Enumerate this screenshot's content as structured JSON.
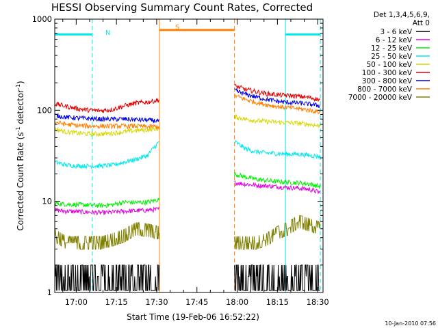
{
  "chart_data": {
    "type": "line",
    "title": "HESSI Observing Summary Count Rates, Corrected",
    "xlabel": "Start Time (19-Feb-06 16:52:22)",
    "ylabel_main": "Corrected Count Rate (s",
    "ylabel_sup1": "-1",
    "ylabel_mid": " detector",
    "ylabel_sup2": "-1",
    "ylabel_end": ")",
    "y_scale": "log",
    "ylim": [
      1,
      1000
    ],
    "xlim_minutes_after_1652": [
      0,
      100
    ],
    "x_ticks": [
      {
        "label": "17:00",
        "minute": 8
      },
      {
        "label": "17:15",
        "minute": 23
      },
      {
        "label": "17:30",
        "minute": 38
      },
      {
        "label": "17:45",
        "minute": 53
      },
      {
        "label": "18:00",
        "minute": 68
      },
      {
        "label": "18:15",
        "minute": 83
      },
      {
        "label": "18:30",
        "minute": 98
      }
    ],
    "y_ticks": [
      {
        "label": "1",
        "value": 1
      },
      {
        "label": "10",
        "value": 10
      },
      {
        "label": "100",
        "value": 100
      },
      {
        "label": "1000",
        "value": 1000
      }
    ],
    "legend_header": [
      "Det 1,3,4,5,6,9,",
      "Att 0"
    ],
    "legend_placement": "right",
    "annotations": {
      "N": "N",
      "S": "S",
      "timestamp": "10-Jan-2010 07:56"
    },
    "gap_minutes": [
      39,
      67
    ],
    "series": [
      {
        "name": "3 - 6 keV",
        "color": "#000000",
        "segments": [
          {
            "t0": 0,
            "t1": 39,
            "v": [
              1.5,
              1.5,
              1.5,
              1.5,
              1.5,
              1.5,
              1.5,
              1.5,
              1.6,
              1.6
            ]
          },
          {
            "t0": 67,
            "t1": 99,
            "v": [
              1.5,
              1.5,
              1.5,
              1.5,
              1.6,
              1.6,
              1.6,
              1.7,
              2.5
            ]
          }
        ]
      },
      {
        "name": "6 - 12 keV",
        "color": "#e100e1",
        "segments": [
          {
            "t0": 0,
            "t1": 39,
            "v": [
              8,
              7.8,
              7.7,
              7.6,
              7.5,
              7.6,
              7.8,
              7.9,
              8,
              8.2
            ]
          },
          {
            "t0": 67,
            "t1": 99,
            "v": [
              16,
              15.5,
              15,
              14.8,
              14.5,
              14.2,
              14,
              13.5,
              12.5
            ]
          }
        ]
      },
      {
        "name": "12 - 25 keV",
        "color": "#00ee00",
        "segments": [
          {
            "t0": 0,
            "t1": 39,
            "v": [
              9.5,
              9.3,
              9.2,
              9.1,
              9.0,
              9.2,
              9.8,
              9.7,
              9.8,
              10.5
            ]
          },
          {
            "t0": 67,
            "t1": 99,
            "v": [
              20,
              18.5,
              17.5,
              17,
              16.5,
              16.2,
              16,
              15.5,
              14.5
            ]
          }
        ]
      },
      {
        "name": "25 - 50 keV",
        "color": "#00e8e8",
        "segments": [
          {
            "t0": 0,
            "t1": 39,
            "v": [
              27,
              25,
              24.5,
              24.5,
              24.5,
              25,
              27,
              29,
              32,
              45
            ]
          },
          {
            "t0": 67,
            "t1": 99,
            "v": [
              45,
              38,
              35,
              34,
              33.5,
              33,
              33,
              32,
              31
            ]
          }
        ]
      },
      {
        "name": "50 - 100 keV",
        "color": "#d7d700",
        "segments": [
          {
            "t0": 0,
            "t1": 39,
            "v": [
              62,
              58,
              56,
              55,
              55,
              56,
              58,
              60,
              61,
              63
            ]
          },
          {
            "t0": 67,
            "t1": 99,
            "v": [
              85,
              80,
              77,
              75,
              74,
              73,
              72,
              70,
              67
            ]
          }
        ]
      },
      {
        "name": "100 - 300 keV",
        "color": "#e10000",
        "segments": [
          {
            "t0": 0,
            "t1": 39,
            "v": [
              118,
              110,
              104,
              100,
              99,
              102,
              112,
              120,
              123,
              130
            ]
          },
          {
            "t0": 67,
            "t1": 99,
            "v": [
              185,
              170,
              160,
              152,
              148,
              145,
              142,
              138,
              130
            ]
          }
        ]
      },
      {
        "name": "300 - 800 keV",
        "color": "#0000e1",
        "segments": [
          {
            "t0": 0,
            "t1": 39,
            "v": [
              88,
              84,
              82,
              81,
              80,
              80,
              80,
              79,
              78,
              76
            ]
          },
          {
            "t0": 67,
            "t1": 99,
            "v": [
              165,
              150,
              140,
              132,
              125,
              122,
              120,
              117,
              112
            ]
          }
        ]
      },
      {
        "name": "800 - 7000 keV",
        "color": "#ff8000",
        "segments": [
          {
            "t0": 0,
            "t1": 39,
            "v": [
              74,
              70,
              68,
              67,
              67,
              67,
              67,
              67,
              66,
              66
            ]
          },
          {
            "t0": 67,
            "t1": 99,
            "v": [
              145,
              132,
              122,
              115,
              110,
              107,
              104,
              100,
              95
            ]
          }
        ]
      },
      {
        "name": "7000 - 20000 keV",
        "color": "#808000",
        "segments": [
          {
            "t0": 0,
            "t1": 39,
            "v": [
              4.2,
              3.5,
              3.5,
              3.5,
              3.5,
              3.8,
              4.2,
              5,
              4.8,
              4.5
            ]
          },
          {
            "t0": 67,
            "t1": 99,
            "v": [
              3.5,
              3.5,
              3.5,
              3.8,
              4.5,
              5,
              6,
              5.5,
              5
            ]
          }
        ]
      }
    ],
    "attenuator_bars": [
      {
        "color": "#00e8e8",
        "t0": 0,
        "t1": 14,
        "value": 680
      },
      {
        "color": "#00e8e8",
        "t0": 86,
        "t1": 99,
        "value": 680
      },
      {
        "color": "#ff8000",
        "t0": 39,
        "t1": 67,
        "value": 760
      }
    ],
    "vlines": [
      {
        "color": "#00e8e8",
        "minute": 0,
        "style": "solid"
      },
      {
        "color": "#00e8e8",
        "minute": 14,
        "style": "dashed"
      },
      {
        "color": "#ff8000",
        "minute": 39,
        "style": "solid"
      },
      {
        "color": "#ff8000",
        "minute": 67,
        "style": "dashed"
      },
      {
        "color": "#00e8e8",
        "minute": 86,
        "style": "solid"
      },
      {
        "color": "#00e8e8",
        "minute": 99,
        "style": "dashed"
      }
    ]
  }
}
